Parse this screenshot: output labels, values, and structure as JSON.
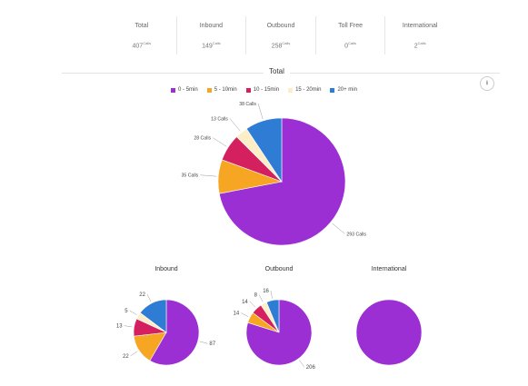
{
  "stats": [
    {
      "label": "Total",
      "value": "407",
      "unit": "Calls"
    },
    {
      "label": "Inbound",
      "value": "149",
      "unit": "Calls"
    },
    {
      "label": "Outbound",
      "value": "258",
      "unit": "Calls"
    },
    {
      "label": "Toll Free",
      "value": "0",
      "unit": "Calls"
    },
    {
      "label": "International",
      "value": "2",
      "unit": "Calls"
    }
  ],
  "section_title": "Total",
  "download_icon": "download-icon",
  "legend": [
    {
      "label": "0 - 5min",
      "color": "#9B2FD4"
    },
    {
      "label": "5 - 10min",
      "color": "#F6A623"
    },
    {
      "label": "10 - 15min",
      "color": "#D4205F"
    },
    {
      "label": "15 - 20min",
      "color": "#FCEFC8"
    },
    {
      "label": "20+ min",
      "color": "#2E7CD3"
    }
  ],
  "chart_data": [
    {
      "type": "pie",
      "title": "",
      "categories": [
        "0 - 5min",
        "5 - 10min",
        "10 - 15min",
        "15 - 20min",
        "20+ min"
      ],
      "values": [
        293,
        35,
        28,
        13,
        38
      ],
      "labels": [
        "293 Calls",
        "35 Calls",
        "28 Calls",
        "13 Calls",
        "38 Calls"
      ]
    },
    {
      "type": "pie",
      "title": "Inbound",
      "categories": [
        "0 - 5min",
        "5 - 10min",
        "10 - 15min",
        "15 - 20min",
        "20+ min"
      ],
      "values": [
        87,
        22,
        13,
        5,
        22
      ],
      "labels": [
        "87",
        "22",
        "13",
        "5",
        "22"
      ]
    },
    {
      "type": "pie",
      "title": "Outbound",
      "categories": [
        "0 - 5min",
        "5 - 10min",
        "10 - 15min",
        "15 - 20min",
        "20+ min"
      ],
      "values": [
        206,
        14,
        14,
        8,
        16
      ],
      "labels": [
        "206",
        "14",
        "14",
        "8",
        "16"
      ]
    },
    {
      "type": "pie",
      "title": "International",
      "categories": [
        "0 - 5min"
      ],
      "values": [
        2
      ],
      "labels": [
        ""
      ]
    }
  ]
}
